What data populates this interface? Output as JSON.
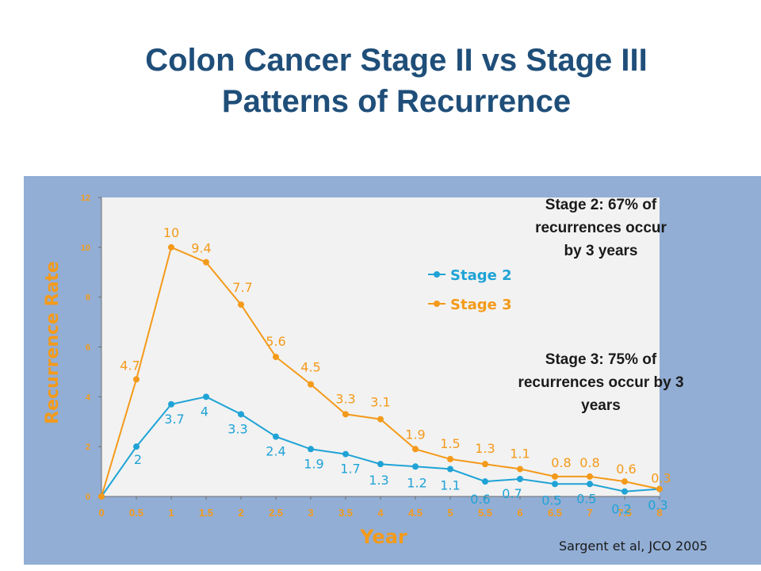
{
  "slide": {
    "title_line1": "Colon Cancer Stage II vs Stage III",
    "title_line2": "Patterns of Recurrence",
    "annotation_stage2": [
      "Stage 2: 67% of",
      "recurrences occur",
      "by 3 years"
    ],
    "annotation_stage3": [
      "Stage 3: 75% of",
      "recurrences occur by 3",
      "years"
    ],
    "citation": "Sargent et al, JCO 2005"
  },
  "colors": {
    "title": "#1f4e79",
    "panel_background": "#92aed5",
    "plot_background": "#f2f2f2",
    "stage2": "#1fa3d6",
    "stage3": "#f49a1a",
    "axis_text": "#f49a1a"
  },
  "chart_data": {
    "type": "line",
    "title": "",
    "xlabel": "Year",
    "ylabel": "Recurrence Rate",
    "xlim": [
      0,
      8
    ],
    "ylim": [
      0,
      12
    ],
    "x_ticks": [
      "0",
      "0.5",
      "1",
      "1.5",
      "2",
      "2.5",
      "3",
      "3.5",
      "4",
      "4.5",
      "5",
      "5.5",
      "6",
      "6.5",
      "7",
      "7.5",
      "8"
    ],
    "y_ticks": [
      "0",
      "2",
      "4",
      "6",
      "8",
      "10",
      "12"
    ],
    "grid": false,
    "legend_position": "top-right",
    "x": [
      0,
      0.5,
      1,
      1.5,
      2,
      2.5,
      3,
      3.5,
      4,
      4.5,
      5,
      5.5,
      6,
      6.5,
      7,
      7.5,
      8
    ],
    "series": [
      {
        "name": "Stage 2",
        "color": "#1fa3d6",
        "values": [
          0,
          2,
          3.7,
          4,
          3.3,
          2.4,
          1.9,
          1.7,
          1.3,
          1.2,
          1.1,
          0.6,
          0.7,
          0.5,
          0.5,
          0.2,
          0.3
        ],
        "labels": [
          "",
          "2",
          "3.7",
          "4",
          "3.3",
          "2.4",
          "1.9",
          "1.7",
          "1.3",
          "1.2",
          "1.1",
          "0.6",
          "0.7",
          "0.5",
          "0.5",
          "0.2",
          "0.3"
        ]
      },
      {
        "name": "Stage 3",
        "color": "#f49a1a",
        "values": [
          0,
          4.7,
          10,
          9.4,
          7.7,
          5.6,
          4.5,
          3.3,
          3.1,
          1.9,
          1.5,
          1.3,
          1.1,
          0.8,
          0.8,
          0.6,
          0.3
        ],
        "labels": [
          "",
          "4.7",
          "10",
          "9.4",
          "7.7",
          "5.6",
          "4.5",
          "3.3",
          "3.1",
          "1.9",
          "1.5",
          "1.3",
          "1.1",
          "0.8",
          "0.8",
          "0.6",
          "0.3"
        ]
      }
    ]
  }
}
